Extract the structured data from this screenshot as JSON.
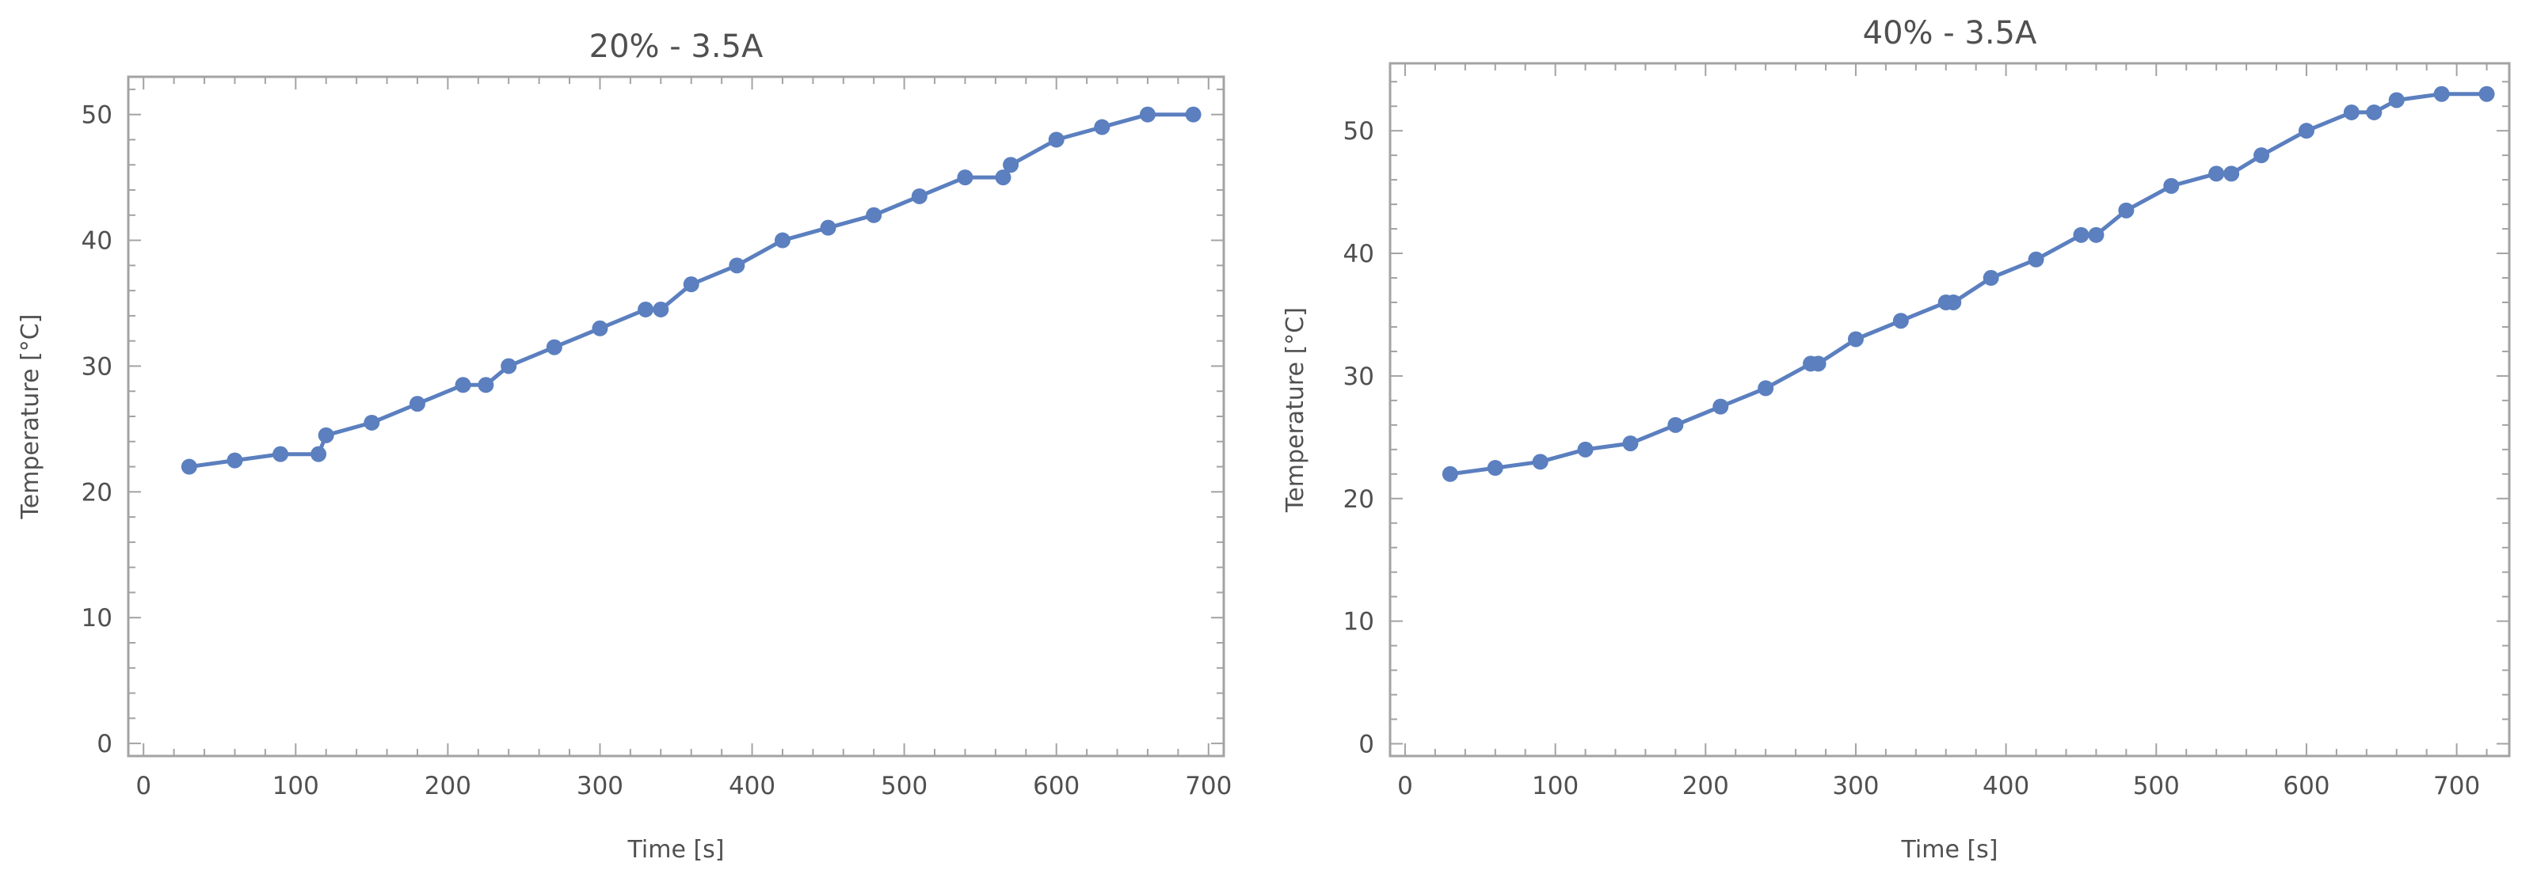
{
  "chart_data": [
    {
      "type": "line",
      "title": "20% - 3.5A",
      "xlabel": "Time [s]",
      "ylabel": "Temperature  [°C]",
      "xlim": [
        -10,
        710
      ],
      "ylim": [
        -1,
        53
      ],
      "xticks": [
        0,
        100,
        200,
        300,
        400,
        500,
        600,
        700
      ],
      "yticks": [
        0,
        10,
        20,
        30,
        40,
        50
      ],
      "grid": false,
      "color": "#5b7fbf",
      "series": [
        {
          "x": [
            30,
            60,
            90,
            115,
            120,
            150,
            180,
            210,
            225,
            240,
            270,
            300,
            330,
            340,
            360,
            390,
            420,
            450,
            480,
            510,
            540,
            565,
            570,
            600,
            630,
            660,
            690
          ],
          "y": [
            22,
            22.5,
            23,
            23,
            24.5,
            25.5,
            27,
            28.5,
            28.5,
            30,
            31.5,
            33,
            34.5,
            34.5,
            36.5,
            38,
            40,
            41,
            42,
            43.5,
            45,
            45,
            46,
            48,
            49,
            50,
            50
          ]
        }
      ]
    },
    {
      "type": "line",
      "title": "40% - 3.5A",
      "xlabel": "Time [s]",
      "ylabel": "Temperature  [°C]",
      "xlim": [
        -10,
        735
      ],
      "ylim": [
        -1,
        55.5
      ],
      "xticks": [
        0,
        100,
        200,
        300,
        400,
        500,
        600,
        700
      ],
      "yticks": [
        0,
        10,
        20,
        30,
        40,
        50
      ],
      "grid": false,
      "color": "#5b7fbf",
      "series": [
        {
          "x": [
            30,
            60,
            90,
            120,
            150,
            180,
            210,
            240,
            270,
            275,
            300,
            330,
            360,
            365,
            390,
            420,
            450,
            460,
            480,
            510,
            540,
            550,
            570,
            600,
            630,
            645,
            660,
            690,
            720
          ],
          "y": [
            22,
            22.5,
            23,
            24,
            24.5,
            26,
            27.5,
            29,
            31,
            31,
            33,
            34.5,
            36,
            36,
            38,
            39.5,
            41.5,
            41.5,
            43.5,
            45.5,
            46.5,
            46.5,
            48,
            50,
            51.5,
            51.5,
            52.5,
            53,
            53
          ]
        }
      ]
    }
  ]
}
